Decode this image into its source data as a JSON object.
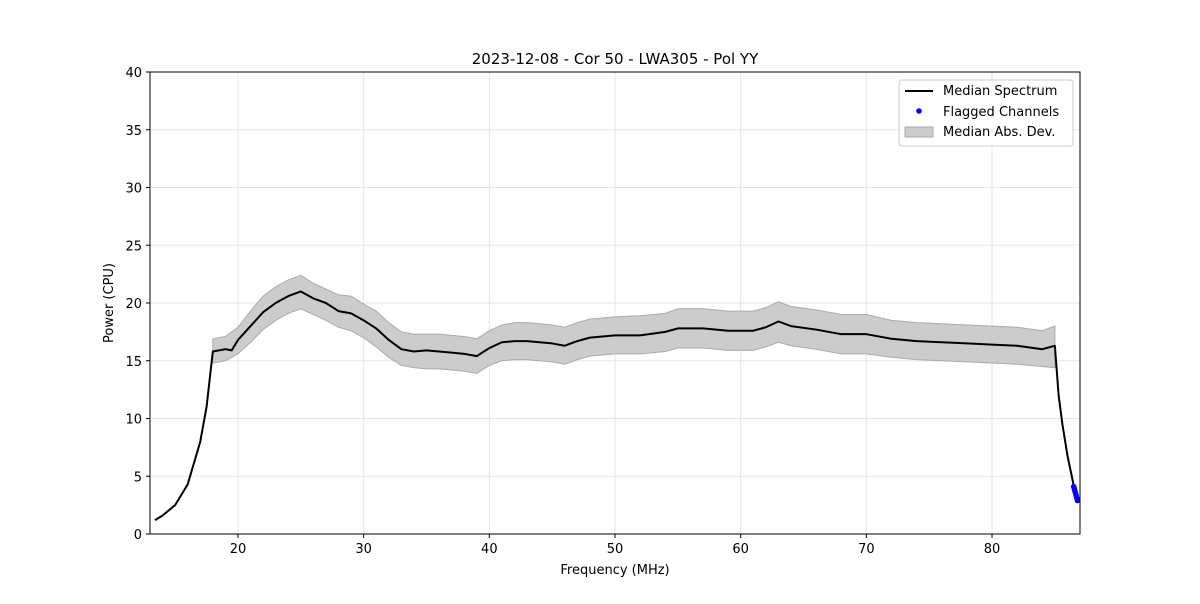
{
  "chart_data": {
    "type": "line",
    "title": "2023-12-08 - Cor 50 - LWA305 - Pol YY",
    "xlabel": "Frequency (MHz)",
    "ylabel": "Power (CPU)",
    "xlim": [
      13,
      87
    ],
    "ylim": [
      0,
      40
    ],
    "xticks": [
      20,
      30,
      40,
      50,
      60,
      70,
      80
    ],
    "yticks": [
      0,
      5,
      10,
      15,
      20,
      25,
      30,
      35,
      40
    ],
    "grid": true,
    "legend_position": "top-right",
    "legend": [
      "Median Spectrum",
      "Flagged Channels",
      "Median Abs. Dev."
    ],
    "colors": {
      "median": "#000000",
      "flagged": "#0000ff",
      "band": "#cccccc",
      "band_edge": "#aaaaaa"
    },
    "median_spectrum": {
      "x": [
        13.4,
        14,
        15,
        16,
        17,
        17.5,
        18,
        19,
        19.5,
        20,
        21,
        22,
        23,
        24,
        25,
        26,
        27,
        28,
        29,
        30,
        31,
        32,
        33,
        34,
        35,
        36,
        37,
        38,
        39,
        40,
        41,
        42,
        43,
        44,
        45,
        46,
        47,
        48,
        49,
        50,
        52,
        54,
        55,
        57,
        59,
        61,
        62,
        63,
        64,
        66,
        68,
        70,
        72,
        74,
        76,
        78,
        80,
        82,
        84,
        85,
        85.3,
        85.6,
        86,
        86.5,
        86.8
      ],
      "y": [
        1.2,
        1.6,
        2.5,
        4.3,
        8.0,
        11.0,
        15.8,
        16.0,
        15.9,
        16.8,
        18.0,
        19.2,
        20.0,
        20.6,
        21.0,
        20.4,
        20.0,
        19.3,
        19.1,
        18.5,
        17.8,
        16.8,
        16.0,
        15.8,
        15.9,
        15.8,
        15.7,
        15.6,
        15.4,
        16.1,
        16.6,
        16.7,
        16.7,
        16.6,
        16.5,
        16.3,
        16.7,
        17.0,
        17.1,
        17.2,
        17.2,
        17.5,
        17.8,
        17.8,
        17.6,
        17.6,
        17.9,
        18.4,
        18.0,
        17.7,
        17.3,
        17.3,
        16.9,
        16.7,
        16.6,
        16.5,
        16.4,
        16.3,
        16.0,
        16.3,
        12.0,
        9.5,
        6.8,
        4.2,
        3.0
      ]
    },
    "median_abs_dev": {
      "x": [
        18,
        19,
        20,
        21,
        22,
        23,
        24,
        25,
        26,
        27,
        28,
        29,
        30,
        31,
        32,
        33,
        34,
        35,
        36,
        37,
        38,
        39,
        40,
        41,
        42,
        43,
        44,
        45,
        46,
        47,
        48,
        49,
        50,
        52,
        54,
        55,
        57,
        59,
        61,
        62,
        63,
        64,
        66,
        68,
        70,
        72,
        74,
        76,
        78,
        80,
        82,
        84,
        85
      ],
      "lower": [
        14.8,
        15.0,
        15.6,
        16.6,
        17.7,
        18.5,
        19.1,
        19.5,
        19.0,
        18.5,
        17.9,
        17.6,
        17.0,
        16.2,
        15.3,
        14.6,
        14.4,
        14.3,
        14.3,
        14.2,
        14.1,
        13.9,
        14.6,
        15.0,
        15.1,
        15.1,
        15.0,
        14.9,
        14.7,
        15.1,
        15.4,
        15.5,
        15.6,
        15.6,
        15.8,
        16.1,
        16.1,
        15.9,
        15.9,
        16.2,
        16.6,
        16.3,
        16.0,
        15.6,
        15.6,
        15.3,
        15.1,
        15.0,
        14.9,
        14.8,
        14.7,
        14.5,
        14.4
      ],
      "upper": [
        16.9,
        17.1,
        17.9,
        19.3,
        20.6,
        21.4,
        22.0,
        22.4,
        21.7,
        21.2,
        20.7,
        20.6,
        19.9,
        19.3,
        18.3,
        17.5,
        17.3,
        17.3,
        17.3,
        17.2,
        17.1,
        16.9,
        17.6,
        18.1,
        18.3,
        18.3,
        18.2,
        18.1,
        17.9,
        18.3,
        18.6,
        18.7,
        18.8,
        18.9,
        19.1,
        19.5,
        19.5,
        19.3,
        19.3,
        19.6,
        20.1,
        19.7,
        19.4,
        19.0,
        19.0,
        18.5,
        18.3,
        18.2,
        18.1,
        18.0,
        17.9,
        17.6,
        18.0
      ]
    },
    "flagged_channels": {
      "x": [
        86.5,
        86.55,
        86.6,
        86.65,
        86.7,
        86.75,
        86.8
      ],
      "y": [
        4.1,
        3.9,
        3.7,
        3.5,
        3.3,
        3.1,
        2.9
      ]
    }
  }
}
